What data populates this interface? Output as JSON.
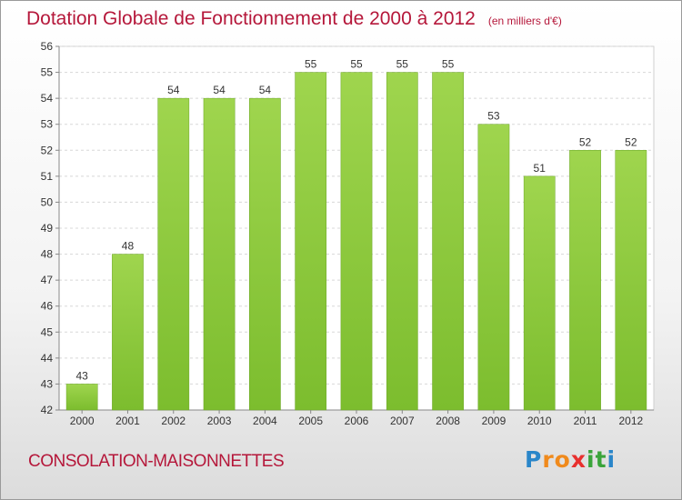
{
  "title": "Dotation Globale de Fonctionnement de 2000 à 2012",
  "unit": "(en milliers d'€)",
  "commune": "CONSOLATION-MAISONNETTES",
  "logo": {
    "letters": [
      "P",
      "r",
      "o",
      "x",
      "i",
      "t",
      "i"
    ],
    "colors": [
      "#2a86c9",
      "#f08a1c",
      "#f08a1c",
      "#e8302e",
      "#3aa43a",
      "#3aa43a",
      "#2a86c9"
    ]
  },
  "colors": {
    "bar": "#7cbd2e",
    "bar_top": "#9fd54e",
    "title": "#b5173a"
  },
  "chart_data": {
    "type": "bar",
    "categories": [
      "2000",
      "2001",
      "2002",
      "2003",
      "2004",
      "2005",
      "2006",
      "2007",
      "2008",
      "2009",
      "2010",
      "2011",
      "2012"
    ],
    "values": [
      43,
      48,
      54,
      54,
      54,
      55,
      55,
      55,
      55,
      53,
      51,
      52,
      52
    ],
    "ylim": [
      42,
      56
    ],
    "yticks": [
      42,
      43,
      44,
      45,
      46,
      47,
      48,
      49,
      50,
      51,
      52,
      53,
      54,
      55,
      56
    ],
    "grid": true
  }
}
